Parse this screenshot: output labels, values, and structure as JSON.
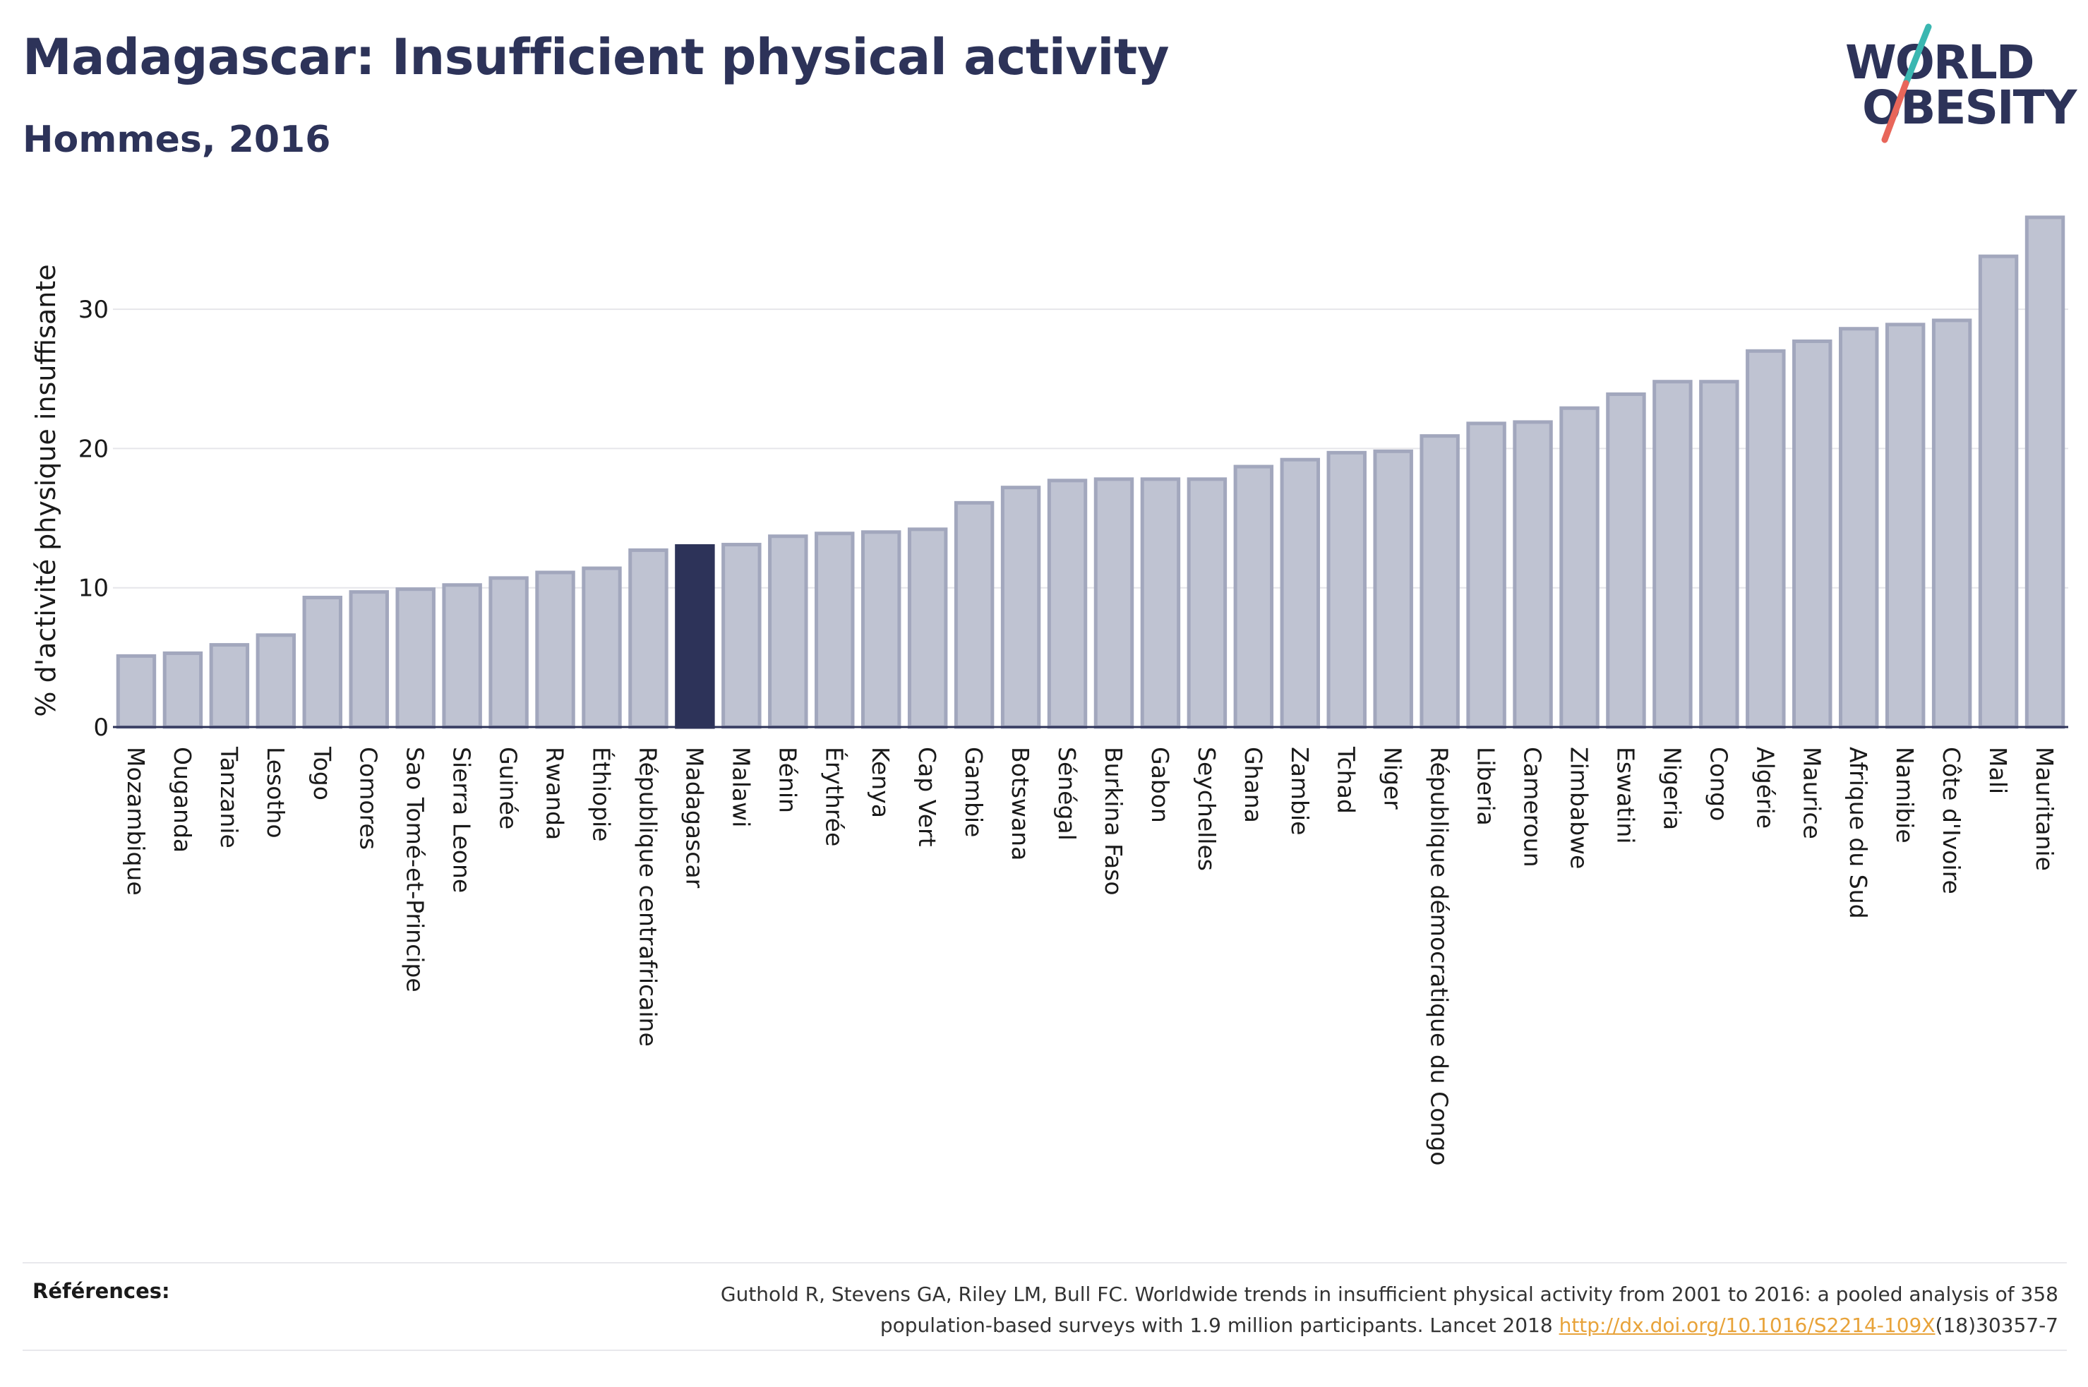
{
  "header": {
    "title": "Madagascar: Insufficient physical activity",
    "subtitle": "Hommes, 2016"
  },
  "logo": {
    "line1": "WORLD",
    "line2": "OBESITY"
  },
  "colors": {
    "bar": "#bfc3d2",
    "bar_border": "#a2a7bd",
    "highlight": "#2d3359",
    "axis": "#2d3359",
    "grid": "#e6e6ea",
    "logo_slash_teal": "#3ab7b1",
    "logo_slash_coral": "#e8665a"
  },
  "chart_data": {
    "type": "bar",
    "ylabel": "% d'activité physique insuffisante",
    "xlabel": "",
    "ylim": [
      0,
      37
    ],
    "yticks": [
      0,
      10,
      20,
      30
    ],
    "grid": true,
    "highlight": "Madagascar",
    "categories": [
      "Mozambique",
      "Ouganda",
      "Tanzanie",
      "Lesotho",
      "Togo",
      "Comores",
      "Sao Tomé-et-Principe",
      "Sierra Leone",
      "Guinée",
      "Rwanda",
      "Éthiopie",
      "République centrafricaine",
      "Madagascar",
      "Malawi",
      "Bénin",
      "Érythrée",
      "Kenya",
      "Cap Vert",
      "Gambie",
      "Botswana",
      "Sénégal",
      "Burkina Faso",
      "Gabon",
      "Seychelles",
      "Ghana",
      "Zambie",
      "Tchad",
      "Niger",
      "République démocratique du Congo",
      "Liberia",
      "Cameroun",
      "Zimbabwe",
      "Eswatini",
      "Nigeria",
      "Congo",
      "Algérie",
      "Maurice",
      "Afrique du Sud",
      "Namibie",
      "Côte d'Ivoire",
      "Mali",
      "Mauritanie"
    ],
    "values": [
      5.1,
      5.3,
      5.9,
      6.6,
      9.3,
      9.7,
      9.9,
      10.2,
      10.7,
      11.1,
      11.4,
      12.7,
      13.0,
      13.1,
      13.7,
      13.9,
      14.0,
      14.2,
      16.1,
      17.2,
      17.7,
      17.8,
      17.8,
      17.8,
      18.7,
      19.2,
      19.7,
      19.8,
      20.9,
      21.8,
      21.9,
      22.9,
      23.9,
      24.8,
      24.8,
      27.0,
      27.7,
      28.6,
      28.9,
      29.2,
      33.8,
      36.6
    ]
  },
  "references": {
    "label": "Références:",
    "text_line1": "Guthold R, Stevens GA, Riley LM, Bull FC. Worldwide trends in insufficient physical activity from 2001 to 2016: a pooled analysis of 358",
    "text_line2_pre": "population-based surveys with 1.9 million participants. Lancet 2018 ",
    "link_text": "http://dx.doi.org/10.1016/S2214-109X",
    "text_line2_post": "(18)30357-7"
  }
}
